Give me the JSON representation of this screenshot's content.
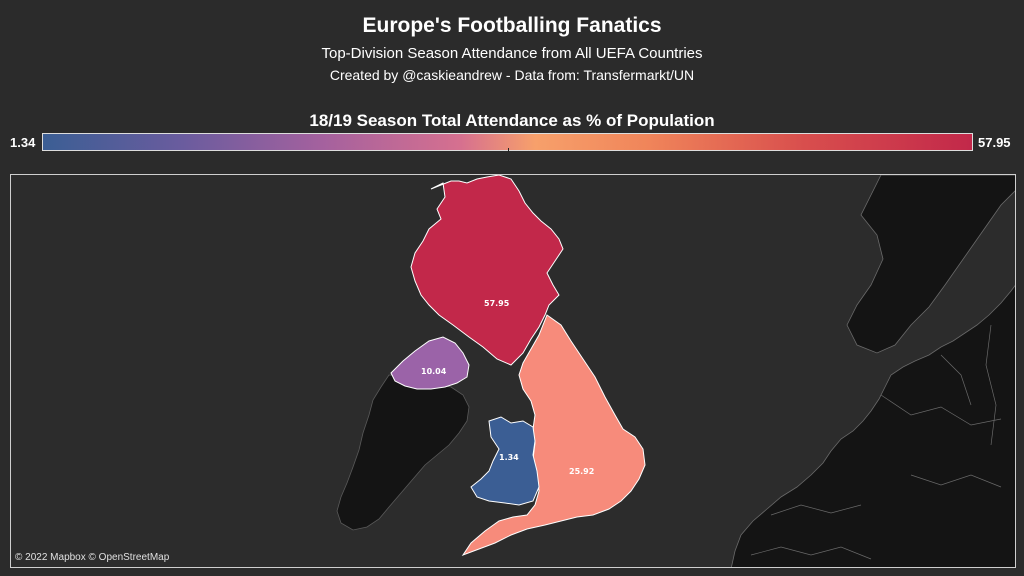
{
  "header": {
    "title": "Europe's Footballing Fanatics",
    "subtitle": "Top-Division Season Attendance from All UEFA Countries",
    "credit": "Created by @caskieandrew - Data from: Transfermarkt/UN"
  },
  "legend": {
    "title": "18/19 Season Total Attendance as % of Population",
    "min": "1.34",
    "max": "57.95"
  },
  "map": {
    "attribution": "© 2022 Mapbox © OpenStreetMap",
    "regions": [
      {
        "name": "Scotland",
        "value": "57.95",
        "color": "#c2284a"
      },
      {
        "name": "England",
        "value": "25.92",
        "color": "#f78b7b"
      },
      {
        "name": "Northern Ireland",
        "value": "10.04",
        "color": "#9b63a8"
      },
      {
        "name": "Wales",
        "value": "1.34",
        "color": "#3b5e94"
      }
    ],
    "colors": {
      "land": "#141414",
      "water": "#2c2c2c",
      "border": "#6a6a6a",
      "outline": "#ffffff"
    }
  }
}
